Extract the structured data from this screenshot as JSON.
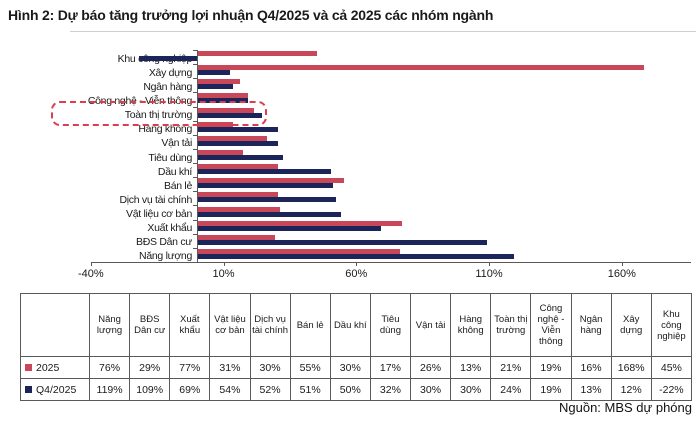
{
  "title": "Hình 2: Dự báo tăng trưởng lợi nhuận Q4/2025 và cả 2025 các nhóm ngành",
  "source": "Nguồn: MBS dự phóng",
  "colors": {
    "series_2025": "#C8485A",
    "series_q4_2025": "#1B2559",
    "highlight_box": "#DE3D50",
    "axis": "#595959",
    "table_border": "#595959"
  },
  "chart_data": {
    "type": "bar",
    "orientation": "horizontal",
    "title": "Dự báo tăng trưởng lợi nhuận Q4/2025 và cả 2025 các nhóm ngành",
    "categories_top_to_bottom": [
      "Khu công nghiệp",
      "Xây dựng",
      "Ngân hàng",
      "Công nghệ - Viễn thông",
      "Toàn thị trường",
      "Hàng không",
      "Vận tải",
      "Tiêu dùng",
      "Dầu khí",
      "Bán lẻ",
      "Dịch vụ tài chính",
      "Vật liệu cơ bản",
      "Xuất khẩu",
      "BĐS Dân cư",
      "Năng lượng"
    ],
    "series": [
      {
        "name": "2025",
        "color": "#C8485A",
        "values": [
          45,
          168,
          16,
          19,
          21,
          13,
          26,
          17,
          30,
          55,
          30,
          31,
          77,
          29,
          76
        ]
      },
      {
        "name": "Q4/2025",
        "color": "#1B2559",
        "values": [
          -22,
          12,
          13,
          19,
          24,
          30,
          30,
          32,
          50,
          51,
          52,
          54,
          69,
          109,
          119
        ]
      }
    ],
    "unit": "%",
    "x_tick_labels": [
      "-40%",
      "10%",
      "60%",
      "110%",
      "160%"
    ],
    "x_tick_values": [
      -40,
      10,
      60,
      110,
      160
    ],
    "xlim": [
      -40,
      186
    ],
    "grid": false,
    "legend_position": "table-below",
    "highlight_category": "Toàn thị trường"
  },
  "table": {
    "headers": [
      "Năng lượng",
      "BĐS Dân cư",
      "Xuất khẩu",
      "Vật liệu cơ bản",
      "Dịch vụ tài chính",
      "Bán lẻ",
      "Dầu khí",
      "Tiêu dùng",
      "Vận tải",
      "Hàng không",
      "Toàn thị trường",
      "Công nghệ - Viễn thông",
      "Ngân hàng",
      "Xây dựng",
      "Khu công nghiệp"
    ],
    "rows": [
      {
        "label": "2025",
        "swatch_color": "#C8485A",
        "values": [
          "76%",
          "29%",
          "77%",
          "31%",
          "30%",
          "55%",
          "30%",
          "17%",
          "26%",
          "13%",
          "21%",
          "19%",
          "16%",
          "168%",
          "45%"
        ]
      },
      {
        "label": "Q4/2025",
        "swatch_color": "#1B2559",
        "values": [
          "119%",
          "109%",
          "69%",
          "54%",
          "52%",
          "51%",
          "50%",
          "32%",
          "30%",
          "30%",
          "24%",
          "19%",
          "13%",
          "12%",
          "-22%"
        ]
      }
    ]
  }
}
